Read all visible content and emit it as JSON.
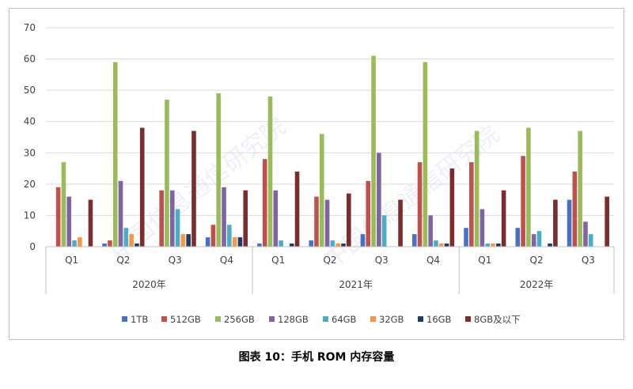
{
  "caption": "图表 10：手机 ROM 内存容量",
  "chart_data": {
    "type": "bar",
    "ylim": [
      0,
      70
    ],
    "yticks": [
      0,
      10,
      20,
      30,
      40,
      50,
      60,
      70
    ],
    "grid": true,
    "legend_position": "bottom",
    "groups": [
      {
        "label": "2020年",
        "quarters": [
          "Q1",
          "Q2",
          "Q3",
          "Q4"
        ]
      },
      {
        "label": "2021年",
        "quarters": [
          "Q1",
          "Q2",
          "Q3",
          "Q4"
        ]
      },
      {
        "label": "2022年",
        "quarters": [
          "Q1",
          "Q2",
          "Q3"
        ]
      }
    ],
    "categories": [
      "2020 Q1",
      "2020 Q2",
      "2020 Q3",
      "2020 Q4",
      "2021 Q1",
      "2021 Q2",
      "2021 Q3",
      "2021 Q4",
      "2022 Q1",
      "2022 Q2",
      "2022 Q3"
    ],
    "series": [
      {
        "name": "1TB",
        "color": "#4472c4",
        "values": [
          0,
          1,
          0,
          3,
          1,
          2,
          4,
          4,
          6,
          6,
          15
        ]
      },
      {
        "name": "512GB",
        "color": "#c0504d",
        "values": [
          19,
          2,
          18,
          7,
          28,
          16,
          21,
          27,
          27,
          29,
          24
        ]
      },
      {
        "name": "256GB",
        "color": "#9bbb59",
        "values": [
          27,
          59,
          47,
          49,
          48,
          36,
          61,
          59,
          37,
          38,
          37
        ]
      },
      {
        "name": "128GB",
        "color": "#8064a2",
        "values": [
          16,
          21,
          18,
          19,
          18,
          15,
          30,
          10,
          12,
          4,
          8
        ]
      },
      {
        "name": "64GB",
        "color": "#4bacc6",
        "values": [
          2,
          6,
          12,
          7,
          2,
          2,
          10,
          2,
          1,
          5,
          4
        ]
      },
      {
        "name": "32GB",
        "color": "#f79646",
        "values": [
          3,
          4,
          4,
          3,
          0,
          1,
          0,
          1,
          1,
          0,
          0
        ]
      },
      {
        "name": "16GB",
        "color": "#1f3864",
        "values": [
          0,
          1,
          4,
          3,
          1,
          1,
          0,
          1,
          1,
          1,
          0
        ]
      },
      {
        "name": "8GB及以下",
        "color": "#7b2c2c",
        "values": [
          15,
          38,
          37,
          18,
          24,
          17,
          15,
          25,
          18,
          15,
          16
        ]
      }
    ]
  },
  "watermark": "中国信息通信研究院"
}
